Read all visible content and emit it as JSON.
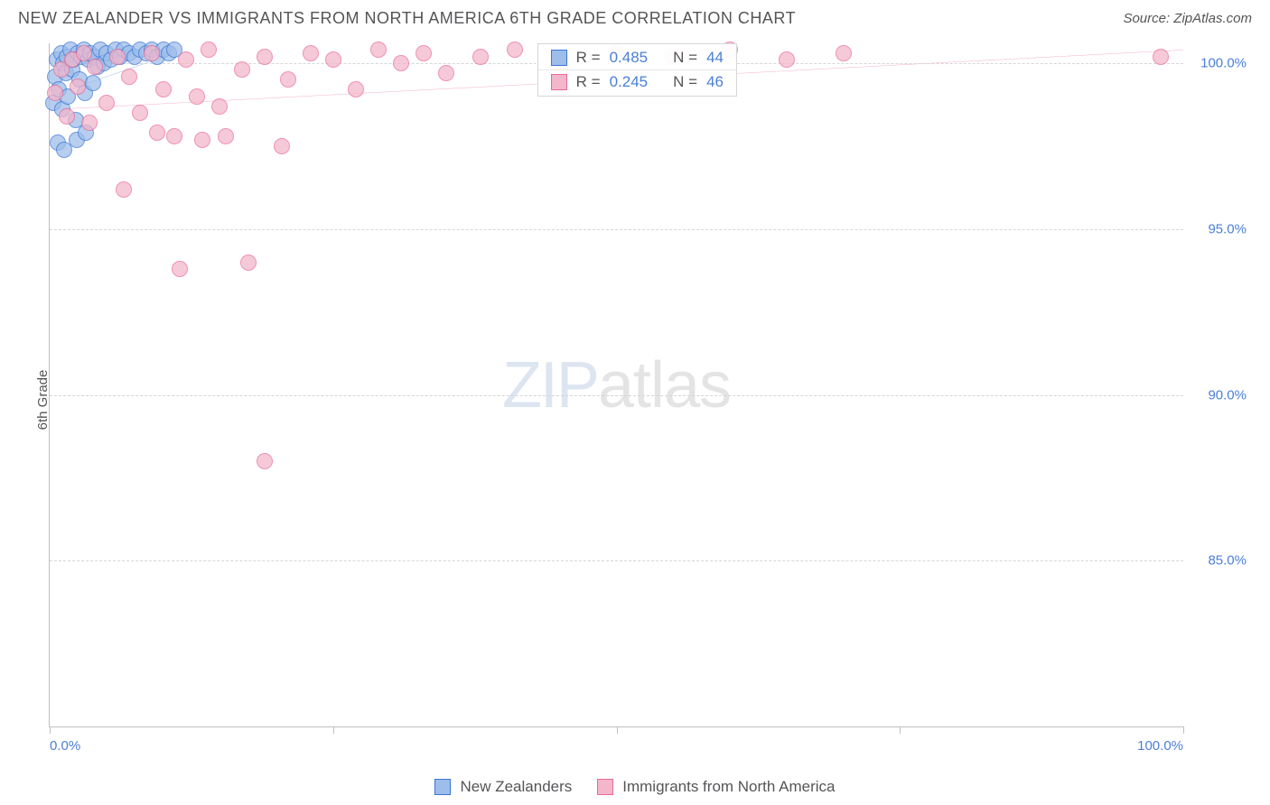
{
  "header": {
    "title": "NEW ZEALANDER VS IMMIGRANTS FROM NORTH AMERICA 6TH GRADE CORRELATION CHART",
    "source": "Source: ZipAtlas.com"
  },
  "chart": {
    "type": "scatter",
    "y_axis_title": "6th Grade",
    "background_color": "#ffffff",
    "grid_color": "#d6d6d6",
    "axis_color": "#bfbfbf",
    "xlim": [
      0,
      100
    ],
    "ylim": [
      80,
      100.6
    ],
    "x_ticks": [
      0,
      25,
      50,
      75,
      100
    ],
    "x_tick_labels": [
      "0.0%",
      "",
      "",
      "",
      "100.0%"
    ],
    "y_ticks": [
      85,
      90,
      95,
      100
    ],
    "y_tick_labels": [
      "85.0%",
      "90.0%",
      "95.0%",
      "100.0%"
    ],
    "tick_label_color": "#4a7fd8",
    "tick_label_fontsize": 15,
    "axis_title_fontsize": 15,
    "marker_radius": 9,
    "marker_stroke_width": 1.2,
    "marker_fill_opacity": 0.28,
    "trend_line_width": 2.2,
    "series": [
      {
        "name": "New Zealanders",
        "color_stroke": "#3b76d6",
        "color_fill": "#9dbdea",
        "trend": {
          "x1": 0,
          "y1": 99.0,
          "x2": 11,
          "y2": 100.3
        },
        "points": [
          [
            0.3,
            98.8
          ],
          [
            0.5,
            99.6
          ],
          [
            0.6,
            100.1
          ],
          [
            0.8,
            99.2
          ],
          [
            1.0,
            100.3
          ],
          [
            1.1,
            98.6
          ],
          [
            1.2,
            100.0
          ],
          [
            1.4,
            99.7
          ],
          [
            1.5,
            100.2
          ],
          [
            1.6,
            99.0
          ],
          [
            1.8,
            100.4
          ],
          [
            2.0,
            99.8
          ],
          [
            2.1,
            100.1
          ],
          [
            2.3,
            98.3
          ],
          [
            2.5,
            100.3
          ],
          [
            2.6,
            99.5
          ],
          [
            2.8,
            100.2
          ],
          [
            3.0,
            100.4
          ],
          [
            3.1,
            99.1
          ],
          [
            3.4,
            100.1
          ],
          [
            3.6,
            100.3
          ],
          [
            3.8,
            99.4
          ],
          [
            4.0,
            100.2
          ],
          [
            4.2,
            99.9
          ],
          [
            4.5,
            100.4
          ],
          [
            4.8,
            100.0
          ],
          [
            5.0,
            100.3
          ],
          [
            5.4,
            100.1
          ],
          [
            5.8,
            100.4
          ],
          [
            6.2,
            100.2
          ],
          [
            6.5,
            100.4
          ],
          [
            7.0,
            100.3
          ],
          [
            7.5,
            100.2
          ],
          [
            8.0,
            100.4
          ],
          [
            8.5,
            100.3
          ],
          [
            9.0,
            100.4
          ],
          [
            9.5,
            100.2
          ],
          [
            10.0,
            100.4
          ],
          [
            10.5,
            100.3
          ],
          [
            11.0,
            100.4
          ],
          [
            0.7,
            97.6
          ],
          [
            1.3,
            97.4
          ],
          [
            2.4,
            97.7
          ],
          [
            3.2,
            97.9
          ]
        ]
      },
      {
        "name": "Immigrants from North America",
        "color_stroke": "#e86a93",
        "color_fill": "#f4b6cb",
        "trend": {
          "x1": 0,
          "y1": 98.6,
          "x2": 100,
          "y2": 100.4
        },
        "points": [
          [
            0.5,
            99.1
          ],
          [
            1.0,
            99.8
          ],
          [
            1.5,
            98.4
          ],
          [
            2.0,
            100.1
          ],
          [
            2.5,
            99.3
          ],
          [
            3.0,
            100.3
          ],
          [
            3.5,
            98.2
          ],
          [
            4.0,
            99.9
          ],
          [
            5.0,
            98.8
          ],
          [
            6.0,
            100.2
          ],
          [
            7.0,
            99.6
          ],
          [
            8.0,
            98.5
          ],
          [
            9.0,
            100.3
          ],
          [
            10.0,
            99.2
          ],
          [
            11.0,
            97.8
          ],
          [
            12.0,
            100.1
          ],
          [
            13.0,
            99.0
          ],
          [
            14.0,
            100.4
          ],
          [
            15.0,
            98.7
          ],
          [
            17.0,
            99.8
          ],
          [
            19.0,
            100.2
          ],
          [
            21.0,
            99.5
          ],
          [
            23.0,
            100.3
          ],
          [
            25.0,
            100.1
          ],
          [
            27.0,
            99.2
          ],
          [
            29.0,
            100.4
          ],
          [
            31.0,
            100.0
          ],
          [
            33.0,
            100.3
          ],
          [
            35.0,
            99.7
          ],
          [
            38.0,
            100.2
          ],
          [
            41.0,
            100.4
          ],
          [
            45.0,
            100.1
          ],
          [
            50.0,
            100.3
          ],
          [
            55.0,
            100.2
          ],
          [
            60.0,
            100.4
          ],
          [
            65.0,
            100.1
          ],
          [
            70.0,
            100.3
          ],
          [
            98.0,
            100.2
          ],
          [
            6.5,
            96.2
          ],
          [
            9.5,
            97.9
          ],
          [
            13.5,
            97.7
          ],
          [
            15.5,
            97.8
          ],
          [
            11.5,
            93.8
          ],
          [
            17.5,
            94.0
          ],
          [
            20.5,
            97.5
          ],
          [
            19.0,
            88.0
          ]
        ]
      }
    ],
    "stats_box": {
      "left_pct": 43.0,
      "top_pct": 0.0,
      "rows": [
        {
          "swatch_stroke": "#3b76d6",
          "swatch_fill": "#9dbdea",
          "r_label": "R =",
          "r_value": "0.485",
          "n_label": "N =",
          "n_value": "44"
        },
        {
          "swatch_stroke": "#e86a93",
          "swatch_fill": "#f4b6cb",
          "r_label": "R =",
          "r_value": "0.245",
          "n_label": "N =",
          "n_value": "46"
        }
      ]
    },
    "watermark": {
      "part1": "ZIP",
      "part2": "atlas"
    }
  },
  "legend": {
    "items": [
      {
        "swatch_stroke": "#3b76d6",
        "swatch_fill": "#9dbdea",
        "label": "New Zealanders"
      },
      {
        "swatch_stroke": "#e86a93",
        "swatch_fill": "#f4b6cb",
        "label": "Immigrants from North America"
      }
    ]
  }
}
